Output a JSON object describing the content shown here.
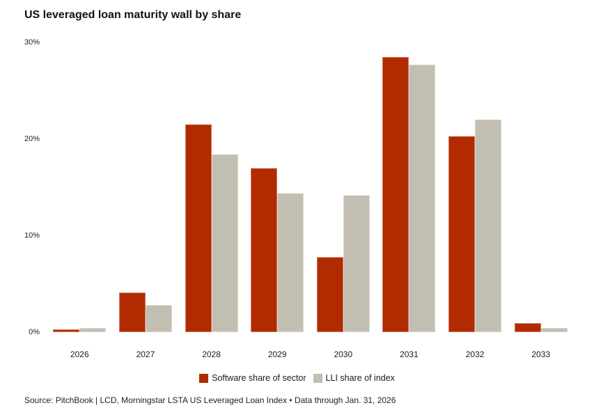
{
  "chart_data": {
    "type": "bar",
    "title": "US leveraged loan maturity wall by share",
    "categories": [
      "2026",
      "2027",
      "2028",
      "2029",
      "2030",
      "2031",
      "2032",
      "2033"
    ],
    "series": [
      {
        "name": "Software share of sector",
        "color": "#B22A00",
        "values": [
          0.3,
          4.1,
          21.5,
          17.0,
          7.8,
          28.5,
          20.3,
          0.9
        ]
      },
      {
        "name": "LLI share of index",
        "color": "#C2BEB2",
        "values": [
          0.4,
          2.8,
          18.4,
          14.4,
          14.2,
          27.7,
          22.0,
          0.4
        ]
      }
    ],
    "xlabel": "",
    "ylabel": "",
    "ylim": [
      0,
      30
    ],
    "yticks": [
      {
        "value": 0,
        "label": "0%"
      },
      {
        "value": 10,
        "label": "10%"
      },
      {
        "value": 20,
        "label": "20%"
      },
      {
        "value": 30,
        "label": "30%"
      }
    ],
    "grid": false,
    "legend_position": "bottom"
  },
  "source_note": "Source: PitchBook | LCD, Morningstar LSTA US Leveraged Loan Index • Data through Jan. 31, 2026"
}
